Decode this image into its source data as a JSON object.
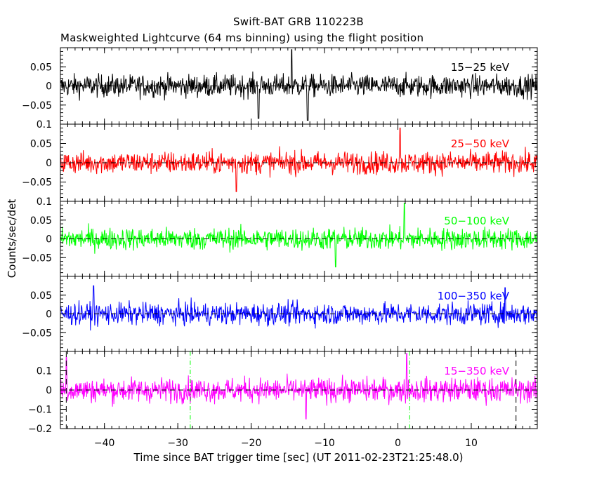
{
  "title": "Swift-BAT GRB 110223B",
  "subtitle": "Maskweighted Lightcurve (64 ms binning) using the flight position",
  "xlabel": "Time since BAT trigger time [sec] (UT 2011-02-23T21:25:48.0)",
  "ylabel": "Counts/sec/det",
  "chart_data": [
    {
      "type": "line",
      "name": "15-25 keV",
      "color": "#000000",
      "xlim": [
        -46,
        19
      ],
      "ylim": [
        -0.1,
        0.1
      ],
      "yticks": [
        0.05,
        0,
        -0.05
      ],
      "ytick_labels": [
        "0.05",
        "0",
        "−0.05"
      ],
      "top_label": "",
      "noise_amp": 0.021,
      "spikes": [
        [
          -19,
          -0.085
        ],
        [
          -12.3,
          -0.09
        ],
        [
          -14.5,
          0.095
        ]
      ],
      "guides": []
    },
    {
      "type": "line",
      "name": "25-50 keV",
      "color": "#ff0000",
      "xlim": [
        -46,
        19
      ],
      "ylim": [
        -0.1,
        0.1
      ],
      "yticks": [
        0.05,
        0,
        -0.05
      ],
      "ytick_labels": [
        "0.05",
        "0",
        "−0.05"
      ],
      "top_label": "0.1",
      "noise_amp": 0.021,
      "spikes": [
        [
          0.3,
          0.09
        ],
        [
          -22,
          -0.075
        ]
      ],
      "guides": []
    },
    {
      "type": "line",
      "name": "50-100 keV",
      "color": "#00ff00",
      "xlim": [
        -46,
        19
      ],
      "ylim": [
        -0.1,
        0.1
      ],
      "yticks": [
        0.05,
        0,
        -0.05
      ],
      "ytick_labels": [
        "0.05",
        "0",
        "−0.05"
      ],
      "top_label": "0.1",
      "noise_amp": 0.021,
      "spikes": [
        [
          0.9,
          0.095
        ],
        [
          -8.5,
          -0.075
        ]
      ],
      "guides": []
    },
    {
      "type": "line",
      "name": "100-350 keV",
      "color": "#0000ff",
      "xlim": [
        -46,
        19
      ],
      "ylim": [
        -0.1,
        0.1
      ],
      "yticks": [
        0.05,
        0,
        -0.05
      ],
      "ytick_labels": [
        "0.05",
        "0",
        "−0.05"
      ],
      "top_label": "",
      "noise_amp": 0.021,
      "spikes": [
        [
          -41.5,
          0.075
        ],
        [
          14.6,
          0.07
        ]
      ],
      "guides": []
    },
    {
      "type": "line",
      "name": "15-350 keV",
      "color": "#ff00ff",
      "xlim": [
        -46,
        19
      ],
      "ylim": [
        -0.2,
        0.2
      ],
      "yticks": [
        0.1,
        0,
        -0.1,
        -0.2
      ],
      "ytick_labels": [
        "0.1",
        "0",
        "−0.1",
        "−0.2"
      ],
      "top_label": "",
      "noise_amp": 0.045,
      "spikes": [
        [
          1.2,
          0.19
        ],
        [
          -45.2,
          0.17
        ],
        [
          -12.5,
          -0.15
        ]
      ],
      "guides": [
        {
          "x": -45.2,
          "color": "#000000",
          "style": "long"
        },
        {
          "x": -28.3,
          "color": "#00ff00",
          "style": "dashdot"
        },
        {
          "x": 1.6,
          "color": "#00ff00",
          "style": "dashdot"
        },
        {
          "x": 16.1,
          "color": "#000000",
          "style": "long"
        }
      ]
    }
  ],
  "xticks": [
    -40,
    -30,
    -20,
    -10,
    0,
    10
  ],
  "xtick_labels": [
    "−40",
    "−30",
    "−20",
    "−10",
    "0",
    "10"
  ]
}
